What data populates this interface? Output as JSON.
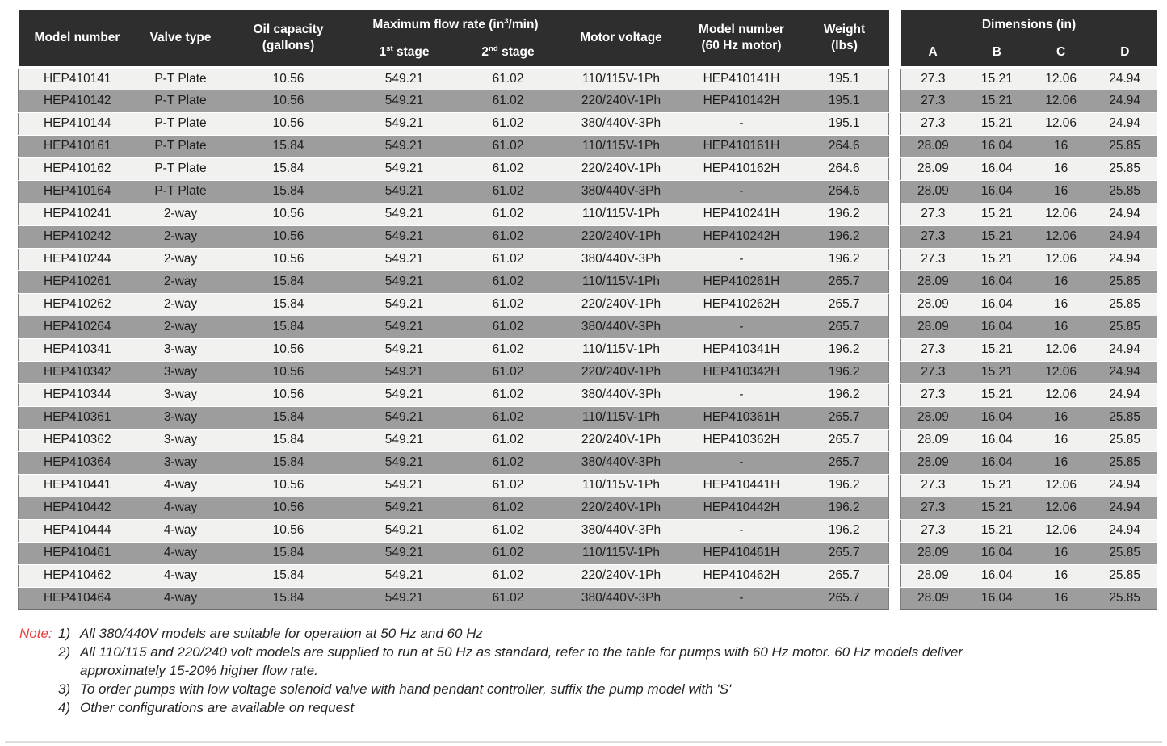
{
  "colors": {
    "header_bg": "#2e2e2e",
    "header_text": "#ffffff",
    "row_light": "#f1f1ef",
    "row_dark": "#9d9d9d",
    "cell_text": "#1d1d1d",
    "note_red": "#ea3a3b",
    "table_border": "#7d7d7d",
    "bottom_rule": "#dcdcdc"
  },
  "main_table": {
    "headers": {
      "model": "Model number",
      "valve": "Valve type",
      "oil_line1": "Oil capacity",
      "oil_line2": "(gallons)",
      "flow_prefix": "Maximum flow rate (in",
      "flow_sup": "3",
      "flow_suffix": "/min)",
      "stage1_num": "1",
      "stage1_sup": "st",
      "stage1_label": " stage",
      "stage2_num": "2",
      "stage2_sup": "nd",
      "stage2_label": " stage",
      "voltage": "Motor voltage",
      "model60_line1": "Model number",
      "model60_line2": "(60 Hz motor)",
      "weight_line1": "Weight",
      "weight_line2": "(lbs)"
    },
    "rows": [
      {
        "model": "HEP410141",
        "valve": "P-T Plate",
        "oil": "10.56",
        "stage1": "549.21",
        "stage2": "61.02",
        "voltage": "110/115V-1Ph",
        "model_60hz": "HEP410141H",
        "weight": "195.1"
      },
      {
        "model": "HEP410142",
        "valve": "P-T Plate",
        "oil": "10.56",
        "stage1": "549.21",
        "stage2": "61.02",
        "voltage": "220/240V-1Ph",
        "model_60hz": "HEP410142H",
        "weight": "195.1"
      },
      {
        "model": "HEP410144",
        "valve": "P-T Plate",
        "oil": "10.56",
        "stage1": "549.21",
        "stage2": "61.02",
        "voltage": "380/440V-3Ph",
        "model_60hz": "-",
        "weight": "195.1"
      },
      {
        "model": "HEP410161",
        "valve": "P-T Plate",
        "oil": "15.84",
        "stage1": "549.21",
        "stage2": "61.02",
        "voltage": "110/115V-1Ph",
        "model_60hz": "HEP410161H",
        "weight": "264.6"
      },
      {
        "model": "HEP410162",
        "valve": "P-T Plate",
        "oil": "15.84",
        "stage1": "549.21",
        "stage2": "61.02",
        "voltage": "220/240V-1Ph",
        "model_60hz": "HEP410162H",
        "weight": "264.6"
      },
      {
        "model": "HEP410164",
        "valve": "P-T Plate",
        "oil": "15.84",
        "stage1": "549.21",
        "stage2": "61.02",
        "voltage": "380/440V-3Ph",
        "model_60hz": "-",
        "weight": "264.6"
      },
      {
        "model": "HEP410241",
        "valve": "2-way",
        "oil": "10.56",
        "stage1": "549.21",
        "stage2": "61.02",
        "voltage": "110/115V-1Ph",
        "model_60hz": "HEP410241H",
        "weight": "196.2"
      },
      {
        "model": "HEP410242",
        "valve": "2-way",
        "oil": "10.56",
        "stage1": "549.21",
        "stage2": "61.02",
        "voltage": "220/240V-1Ph",
        "model_60hz": "HEP410242H",
        "weight": "196.2"
      },
      {
        "model": "HEP410244",
        "valve": "2-way",
        "oil": "10.56",
        "stage1": "549.21",
        "stage2": "61.02",
        "voltage": "380/440V-3Ph",
        "model_60hz": "-",
        "weight": "196.2"
      },
      {
        "model": "HEP410261",
        "valve": "2-way",
        "oil": "15.84",
        "stage1": "549.21",
        "stage2": "61.02",
        "voltage": "110/115V-1Ph",
        "model_60hz": "HEP410261H",
        "weight": "265.7"
      },
      {
        "model": "HEP410262",
        "valve": "2-way",
        "oil": "15.84",
        "stage1": "549.21",
        "stage2": "61.02",
        "voltage": "220/240V-1Ph",
        "model_60hz": "HEP410262H",
        "weight": "265.7"
      },
      {
        "model": "HEP410264",
        "valve": "2-way",
        "oil": "15.84",
        "stage1": "549.21",
        "stage2": "61.02",
        "voltage": "380/440V-3Ph",
        "model_60hz": "-",
        "weight": "265.7"
      },
      {
        "model": "HEP410341",
        "valve": "3-way",
        "oil": "10.56",
        "stage1": "549.21",
        "stage2": "61.02",
        "voltage": "110/115V-1Ph",
        "model_60hz": "HEP410341H",
        "weight": "196.2"
      },
      {
        "model": "HEP410342",
        "valve": "3-way",
        "oil": "10.56",
        "stage1": "549.21",
        "stage2": "61.02",
        "voltage": "220/240V-1Ph",
        "model_60hz": "HEP410342H",
        "weight": "196.2"
      },
      {
        "model": "HEP410344",
        "valve": "3-way",
        "oil": "10.56",
        "stage1": "549.21",
        "stage2": "61.02",
        "voltage": "380/440V-3Ph",
        "model_60hz": "-",
        "weight": "196.2"
      },
      {
        "model": "HEP410361",
        "valve": "3-way",
        "oil": "15.84",
        "stage1": "549.21",
        "stage2": "61.02",
        "voltage": "110/115V-1Ph",
        "model_60hz": "HEP410361H",
        "weight": "265.7"
      },
      {
        "model": "HEP410362",
        "valve": "3-way",
        "oil": "15.84",
        "stage1": "549.21",
        "stage2": "61.02",
        "voltage": "220/240V-1Ph",
        "model_60hz": "HEP410362H",
        "weight": "265.7"
      },
      {
        "model": "HEP410364",
        "valve": "3-way",
        "oil": "15.84",
        "stage1": "549.21",
        "stage2": "61.02",
        "voltage": "380/440V-3Ph",
        "model_60hz": "-",
        "weight": "265.7"
      },
      {
        "model": "HEP410441",
        "valve": "4-way",
        "oil": "10.56",
        "stage1": "549.21",
        "stage2": "61.02",
        "voltage": "110/115V-1Ph",
        "model_60hz": "HEP410441H",
        "weight": "196.2"
      },
      {
        "model": "HEP410442",
        "valve": "4-way",
        "oil": "10.56",
        "stage1": "549.21",
        "stage2": "61.02",
        "voltage": "220/240V-1Ph",
        "model_60hz": "HEP410442H",
        "weight": "196.2"
      },
      {
        "model": "HEP410444",
        "valve": "4-way",
        "oil": "10.56",
        "stage1": "549.21",
        "stage2": "61.02",
        "voltage": "380/440V-3Ph",
        "model_60hz": "-",
        "weight": "196.2"
      },
      {
        "model": "HEP410461",
        "valve": "4-way",
        "oil": "15.84",
        "stage1": "549.21",
        "stage2": "61.02",
        "voltage": "110/115V-1Ph",
        "model_60hz": "HEP410461H",
        "weight": "265.7"
      },
      {
        "model": "HEP410462",
        "valve": "4-way",
        "oil": "15.84",
        "stage1": "549.21",
        "stage2": "61.02",
        "voltage": "220/240V-1Ph",
        "model_60hz": "HEP410462H",
        "weight": "265.7"
      },
      {
        "model": "HEP410464",
        "valve": "4-way",
        "oil": "15.84",
        "stage1": "549.21",
        "stage2": "61.02",
        "voltage": "380/440V-3Ph",
        "model_60hz": "-",
        "weight": "265.7"
      }
    ]
  },
  "dimensions_table": {
    "title": "Dimensions (in)",
    "columns": [
      "A",
      "B",
      "C",
      "D"
    ],
    "rows": [
      [
        "27.3",
        "15.21",
        "12.06",
        "24.94"
      ],
      [
        "27.3",
        "15.21",
        "12.06",
        "24.94"
      ],
      [
        "27.3",
        "15.21",
        "12.06",
        "24.94"
      ],
      [
        "28.09",
        "16.04",
        "16",
        "25.85"
      ],
      [
        "28.09",
        "16.04",
        "16",
        "25.85"
      ],
      [
        "28.09",
        "16.04",
        "16",
        "25.85"
      ],
      [
        "27.3",
        "15.21",
        "12.06",
        "24.94"
      ],
      [
        "27.3",
        "15.21",
        "12.06",
        "24.94"
      ],
      [
        "27.3",
        "15.21",
        "12.06",
        "24.94"
      ],
      [
        "28.09",
        "16.04",
        "16",
        "25.85"
      ],
      [
        "28.09",
        "16.04",
        "16",
        "25.85"
      ],
      [
        "28.09",
        "16.04",
        "16",
        "25.85"
      ],
      [
        "27.3",
        "15.21",
        "12.06",
        "24.94"
      ],
      [
        "27.3",
        "15.21",
        "12.06",
        "24.94"
      ],
      [
        "27.3",
        "15.21",
        "12.06",
        "24.94"
      ],
      [
        "28.09",
        "16.04",
        "16",
        "25.85"
      ],
      [
        "28.09",
        "16.04",
        "16",
        "25.85"
      ],
      [
        "28.09",
        "16.04",
        "16",
        "25.85"
      ],
      [
        "27.3",
        "15.21",
        "12.06",
        "24.94"
      ],
      [
        "27.3",
        "15.21",
        "12.06",
        "24.94"
      ],
      [
        "27.3",
        "15.21",
        "12.06",
        "24.94"
      ],
      [
        "28.09",
        "16.04",
        "16",
        "25.85"
      ],
      [
        "28.09",
        "16.04",
        "16",
        "25.85"
      ],
      [
        "28.09",
        "16.04",
        "16",
        "25.85"
      ]
    ]
  },
  "notes": {
    "label": "Note:",
    "items": [
      {
        "num": "1)",
        "text": "All 380/440V models are suitable for operation at 50 Hz and 60 Hz"
      },
      {
        "num": "2)",
        "text": "All 110/115 and 220/240 volt models are supplied to run at 50 Hz as standard, refer to the table for pumps with 60 Hz motor. 60 Hz models deliver approximately 15-20% higher flow rate."
      },
      {
        "num": "3)",
        "text": "To order pumps with low voltage solenoid valve with hand pendant controller, suffix the pump model with 'S'"
      },
      {
        "num": "4)",
        "text": "Other configurations are available on request"
      }
    ]
  }
}
